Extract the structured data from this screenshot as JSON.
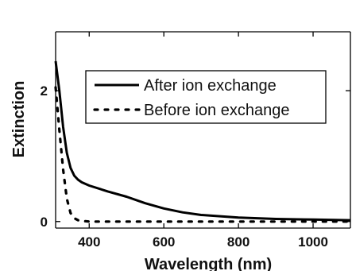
{
  "chart_data": {
    "type": "line",
    "xlabel": "Wavelength (nm)",
    "ylabel": "Extinction",
    "xlim": [
      310,
      1100
    ],
    "ylim": [
      -0.1,
      2.9
    ],
    "xticks": [
      400,
      600,
      800,
      1000
    ],
    "xtick_labels": [
      "400",
      "600",
      "800",
      "1000"
    ],
    "yticks": [
      0,
      2
    ],
    "ytick_labels": [
      "0",
      "2"
    ],
    "grid": false,
    "legend_position": "center-right",
    "series": [
      {
        "name": "After ion exchange",
        "style": "solid",
        "color": "#000000",
        "x": [
          310,
          320,
          330,
          340,
          350,
          360,
          370,
          380,
          400,
          450,
          500,
          550,
          600,
          650,
          700,
          800,
          900,
          1000,
          1100
        ],
        "y": [
          2.45,
          2.0,
          1.45,
          1.05,
          0.82,
          0.7,
          0.64,
          0.6,
          0.55,
          0.46,
          0.38,
          0.28,
          0.2,
          0.14,
          0.1,
          0.06,
          0.04,
          0.03,
          0.02
        ]
      },
      {
        "name": "Before ion exchange",
        "style": "dotted",
        "color": "#000000",
        "x": [
          310,
          320,
          330,
          340,
          350,
          360,
          370,
          380,
          400,
          500,
          600,
          700,
          800,
          900,
          1000,
          1100
        ],
        "y": [
          2.05,
          1.4,
          0.8,
          0.35,
          0.13,
          0.05,
          0.02,
          0.01,
          0.0,
          0.0,
          0.0,
          0.0,
          0.0,
          0.0,
          0.0,
          0.0
        ]
      }
    ]
  }
}
